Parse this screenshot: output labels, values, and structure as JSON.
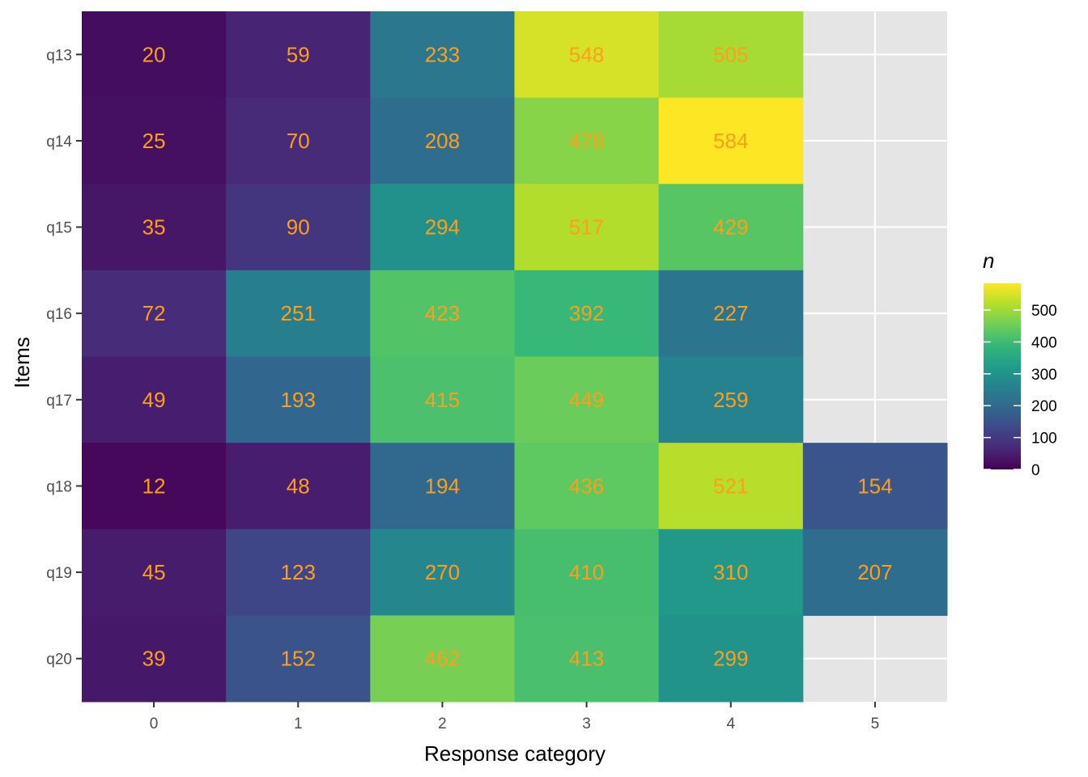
{
  "chart_data": {
    "type": "heatmap",
    "title": "",
    "xlabel": "Response category",
    "ylabel": "Items",
    "x_categories": [
      "0",
      "1",
      "2",
      "3",
      "4",
      "5"
    ],
    "y_categories": [
      "q13",
      "q14",
      "q15",
      "q16",
      "q17",
      "q18",
      "q19",
      "q20"
    ],
    "values": [
      [
        20,
        59,
        233,
        548,
        505,
        null
      ],
      [
        25,
        70,
        208,
        478,
        584,
        null
      ],
      [
        35,
        90,
        294,
        517,
        429,
        null
      ],
      [
        72,
        251,
        423,
        392,
        227,
        null
      ],
      [
        49,
        193,
        415,
        449,
        259,
        null
      ],
      [
        12,
        48,
        194,
        436,
        521,
        154
      ],
      [
        45,
        123,
        270,
        410,
        310,
        207
      ],
      [
        39,
        152,
        462,
        413,
        299,
        null
      ]
    ],
    "color_scale": "viridis",
    "color_range": [
      0,
      584
    ],
    "legend": {
      "title": "n",
      "breaks": [
        0,
        100,
        200,
        300,
        400,
        500
      ],
      "placement": "right"
    },
    "label_color": "#ff9e1b",
    "panel_background": "#e5e5e5",
    "grid": true
  }
}
